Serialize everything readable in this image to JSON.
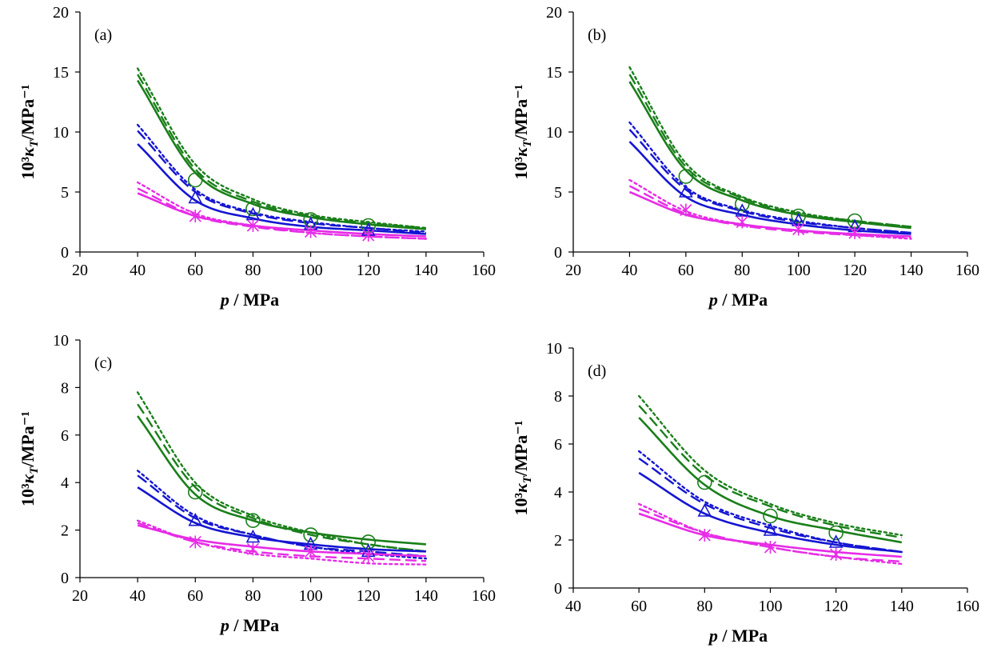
{
  "colors": {
    "green": "#1a7f1a",
    "blue": "#1515d2",
    "magenta": "#e62ce6",
    "axis": "#000000"
  },
  "chart_data": [
    {
      "type": "line",
      "panel_label": "(a)",
      "xlabel": "p / MPa",
      "ylabel": "10³κT/MPa⁻¹",
      "xlim": [
        20,
        160
      ],
      "ylim": [
        0,
        20
      ],
      "xticks": [
        20,
        40,
        60,
        80,
        100,
        120,
        140,
        160
      ],
      "yticks": [
        0,
        5,
        10,
        15,
        20
      ],
      "grid": false,
      "series": [
        {
          "color": "green",
          "style": "solid",
          "x": [
            40,
            60,
            80,
            100,
            120,
            140
          ],
          "y": [
            14.3,
            6.6,
            4.0,
            2.9,
            2.3,
            1.9
          ]
        },
        {
          "color": "green",
          "style": "dash",
          "x": [
            40,
            60,
            80,
            100,
            120,
            140
          ],
          "y": [
            14.8,
            6.9,
            4.2,
            3.0,
            2.4,
            2.0
          ]
        },
        {
          "color": "green",
          "style": "dot",
          "x": [
            40,
            60,
            80,
            100,
            120,
            140
          ],
          "y": [
            15.3,
            7.3,
            4.4,
            3.1,
            2.5,
            2.0
          ]
        },
        {
          "color": "blue",
          "style": "solid",
          "x": [
            40,
            60,
            80,
            100,
            120,
            140
          ],
          "y": [
            9.0,
            4.3,
            2.8,
            2.1,
            1.8,
            1.5
          ]
        },
        {
          "color": "blue",
          "style": "dash",
          "x": [
            40,
            60,
            80,
            100,
            120,
            140
          ],
          "y": [
            10.1,
            5.0,
            3.2,
            2.4,
            2.0,
            1.6
          ]
        },
        {
          "color": "blue",
          "style": "dot",
          "x": [
            40,
            60,
            80,
            100,
            120,
            140
          ],
          "y": [
            10.6,
            5.2,
            3.3,
            2.5,
            2.0,
            1.7
          ]
        },
        {
          "color": "magenta",
          "style": "solid",
          "x": [
            40,
            60,
            80,
            100,
            120,
            140
          ],
          "y": [
            4.9,
            3.0,
            2.2,
            1.8,
            1.5,
            1.3
          ]
        },
        {
          "color": "magenta",
          "style": "dash",
          "x": [
            40,
            60,
            80,
            100,
            120,
            140
          ],
          "y": [
            5.3,
            3.0,
            2.1,
            1.6,
            1.3,
            1.1
          ]
        },
        {
          "color": "magenta",
          "style": "dot",
          "x": [
            40,
            60,
            80,
            100,
            120,
            140
          ],
          "y": [
            5.8,
            3.2,
            2.2,
            1.6,
            1.3,
            1.1
          ]
        },
        {
          "color": "green",
          "style": "marker",
          "marker": "circle",
          "x": [
            60,
            80,
            100,
            120
          ],
          "y": [
            6.0,
            3.6,
            2.7,
            2.2
          ]
        },
        {
          "color": "blue",
          "style": "marker",
          "marker": "triangle",
          "x": [
            60,
            80,
            100,
            120
          ],
          "y": [
            4.5,
            3.1,
            2.3,
            1.8
          ]
        },
        {
          "color": "magenta",
          "style": "marker",
          "marker": "asterisk",
          "x": [
            60,
            80,
            100,
            120
          ],
          "y": [
            3.0,
            2.2,
            1.7,
            1.4
          ]
        }
      ]
    },
    {
      "type": "line",
      "panel_label": "(b)",
      "xlabel": "p / MPa",
      "ylabel": "10³κT/MPa⁻¹",
      "xlim": [
        20,
        160
      ],
      "ylim": [
        0,
        20
      ],
      "xticks": [
        20,
        40,
        60,
        80,
        100,
        120,
        140,
        160
      ],
      "yticks": [
        0,
        5,
        10,
        15,
        20
      ],
      "grid": false,
      "series": [
        {
          "color": "green",
          "style": "solid",
          "x": [
            40,
            60,
            80,
            100,
            120,
            140
          ],
          "y": [
            14.2,
            6.8,
            4.3,
            3.1,
            2.5,
            2.0
          ]
        },
        {
          "color": "green",
          "style": "dash",
          "x": [
            40,
            60,
            80,
            100,
            120,
            140
          ],
          "y": [
            14.8,
            7.1,
            4.5,
            3.2,
            2.6,
            2.1
          ]
        },
        {
          "color": "green",
          "style": "dot",
          "x": [
            40,
            60,
            80,
            100,
            120,
            140
          ],
          "y": [
            15.4,
            7.4,
            4.6,
            3.3,
            2.6,
            2.1
          ]
        },
        {
          "color": "blue",
          "style": "solid",
          "x": [
            40,
            60,
            80,
            100,
            120,
            140
          ],
          "y": [
            9.2,
            4.6,
            3.1,
            2.3,
            1.8,
            1.5
          ]
        },
        {
          "color": "blue",
          "style": "dash",
          "x": [
            40,
            60,
            80,
            100,
            120,
            140
          ],
          "y": [
            10.2,
            5.2,
            3.4,
            2.5,
            2.0,
            1.6
          ]
        },
        {
          "color": "blue",
          "style": "dot",
          "x": [
            40,
            60,
            80,
            100,
            120,
            140
          ],
          "y": [
            10.8,
            5.4,
            3.5,
            2.6,
            2.0,
            1.6
          ]
        },
        {
          "color": "magenta",
          "style": "solid",
          "x": [
            40,
            60,
            80,
            100,
            120,
            140
          ],
          "y": [
            5.0,
            3.1,
            2.3,
            1.8,
            1.5,
            1.3
          ]
        },
        {
          "color": "magenta",
          "style": "dash",
          "x": [
            40,
            60,
            80,
            100,
            120,
            140
          ],
          "y": [
            5.5,
            3.2,
            2.2,
            1.7,
            1.4,
            1.2
          ]
        },
        {
          "color": "magenta",
          "style": "dot",
          "x": [
            40,
            60,
            80,
            100,
            120,
            140
          ],
          "y": [
            6.0,
            3.4,
            2.3,
            1.8,
            1.4,
            1.1
          ]
        },
        {
          "color": "green",
          "style": "marker",
          "marker": "circle",
          "x": [
            60,
            80,
            100,
            120
          ],
          "y": [
            6.3,
            4.0,
            3.0,
            2.6
          ]
        },
        {
          "color": "blue",
          "style": "marker",
          "marker": "triangle",
          "x": [
            60,
            80,
            100,
            120
          ],
          "y": [
            5.0,
            3.4,
            2.6,
            2.1
          ]
        },
        {
          "color": "magenta",
          "style": "marker",
          "marker": "asterisk",
          "x": [
            60,
            80,
            100,
            120
          ],
          "y": [
            3.5,
            2.5,
            1.9,
            1.6
          ]
        }
      ]
    },
    {
      "type": "line",
      "panel_label": "(c)",
      "xlabel": "p / MPa",
      "ylabel": "10³κT/MPa⁻¹",
      "xlim": [
        20,
        160
      ],
      "ylim": [
        0,
        10
      ],
      "xticks": [
        20,
        40,
        60,
        80,
        100,
        120,
        140,
        160
      ],
      "yticks": [
        0,
        2,
        4,
        6,
        8,
        10
      ],
      "grid": false,
      "series": [
        {
          "color": "green",
          "style": "solid",
          "x": [
            40,
            60,
            80,
            100,
            120,
            140
          ],
          "y": [
            6.8,
            3.5,
            2.4,
            1.9,
            1.6,
            1.4
          ]
        },
        {
          "color": "green",
          "style": "dash",
          "x": [
            40,
            60,
            80,
            100,
            120,
            140
          ],
          "y": [
            7.3,
            3.8,
            2.5,
            1.8,
            1.4,
            1.1
          ]
        },
        {
          "color": "green",
          "style": "dot",
          "x": [
            40,
            60,
            80,
            100,
            120,
            140
          ],
          "y": [
            7.8,
            4.0,
            2.6,
            1.9,
            1.4,
            1.1
          ]
        },
        {
          "color": "blue",
          "style": "solid",
          "x": [
            40,
            60,
            80,
            100,
            120,
            140
          ],
          "y": [
            3.8,
            2.3,
            1.7,
            1.4,
            1.2,
            1.1
          ]
        },
        {
          "color": "blue",
          "style": "dash",
          "x": [
            40,
            60,
            80,
            100,
            120,
            140
          ],
          "y": [
            4.3,
            2.5,
            1.8,
            1.3,
            1.1,
            0.9
          ]
        },
        {
          "color": "blue",
          "style": "dot",
          "x": [
            40,
            60,
            80,
            100,
            120,
            140
          ],
          "y": [
            4.5,
            2.6,
            1.8,
            1.3,
            1.0,
            0.8
          ]
        },
        {
          "color": "magenta",
          "style": "solid",
          "x": [
            40,
            60,
            80,
            100,
            120,
            140
          ],
          "y": [
            2.2,
            1.6,
            1.3,
            1.1,
            1.0,
            0.9
          ]
        },
        {
          "color": "magenta",
          "style": "dash",
          "x": [
            40,
            60,
            80,
            100,
            120,
            140
          ],
          "y": [
            2.3,
            1.5,
            1.1,
            0.9,
            0.8,
            0.7
          ]
        },
        {
          "color": "magenta",
          "style": "dot",
          "x": [
            40,
            60,
            80,
            100,
            120,
            140
          ],
          "y": [
            2.4,
            1.5,
            1.0,
            0.8,
            0.6,
            0.55
          ]
        },
        {
          "color": "green",
          "style": "marker",
          "marker": "circle",
          "x": [
            60,
            80,
            100,
            120
          ],
          "y": [
            3.6,
            2.4,
            1.8,
            1.5
          ]
        },
        {
          "color": "blue",
          "style": "marker",
          "marker": "triangle",
          "x": [
            60,
            80,
            100,
            120
          ],
          "y": [
            2.4,
            1.7,
            1.4,
            1.1
          ]
        },
        {
          "color": "magenta",
          "style": "marker",
          "marker": "asterisk",
          "x": [
            60,
            80,
            100,
            120
          ],
          "y": [
            1.5,
            1.2,
            1.1,
            0.9
          ]
        }
      ]
    },
    {
      "type": "line",
      "panel_label": "(d)",
      "xlabel": "p / MPa",
      "ylabel": "10³κT/MPa⁻¹",
      "xlim": [
        40,
        160
      ],
      "ylim": [
        0,
        10
      ],
      "xticks": [
        40,
        60,
        80,
        100,
        120,
        140,
        160
      ],
      "yticks": [
        0,
        2,
        4,
        6,
        8,
        10
      ],
      "grid": false,
      "series": [
        {
          "color": "green",
          "style": "solid",
          "x": [
            60,
            80,
            100,
            120,
            140
          ],
          "y": [
            7.1,
            4.3,
            3.0,
            2.4,
            1.9
          ]
        },
        {
          "color": "green",
          "style": "dash",
          "x": [
            60,
            80,
            100,
            120,
            140
          ],
          "y": [
            7.6,
            4.7,
            3.4,
            2.6,
            2.1
          ]
        },
        {
          "color": "green",
          "style": "dot",
          "x": [
            60,
            80,
            100,
            120,
            140
          ],
          "y": [
            8.0,
            4.9,
            3.5,
            2.7,
            2.2
          ]
        },
        {
          "color": "blue",
          "style": "solid",
          "x": [
            60,
            80,
            100,
            120,
            140
          ],
          "y": [
            4.8,
            3.1,
            2.3,
            1.8,
            1.5
          ]
        },
        {
          "color": "blue",
          "style": "dash",
          "x": [
            60,
            80,
            100,
            120,
            140
          ],
          "y": [
            5.4,
            3.5,
            2.5,
            1.9,
            1.5
          ]
        },
        {
          "color": "blue",
          "style": "dot",
          "x": [
            60,
            80,
            100,
            120,
            140
          ],
          "y": [
            5.7,
            3.6,
            2.6,
            1.9,
            1.5
          ]
        },
        {
          "color": "magenta",
          "style": "solid",
          "x": [
            60,
            80,
            100,
            120,
            140
          ],
          "y": [
            3.1,
            2.2,
            1.8,
            1.5,
            1.3
          ]
        },
        {
          "color": "magenta",
          "style": "dash",
          "x": [
            60,
            80,
            100,
            120,
            140
          ],
          "y": [
            3.3,
            2.3,
            1.7,
            1.3,
            1.1
          ]
        },
        {
          "color": "magenta",
          "style": "dot",
          "x": [
            60,
            80,
            100,
            120,
            140
          ],
          "y": [
            3.5,
            2.3,
            1.7,
            1.3,
            1.0
          ]
        },
        {
          "color": "green",
          "style": "marker",
          "marker": "circle",
          "x": [
            80,
            100,
            120
          ],
          "y": [
            4.4,
            3.0,
            2.3
          ]
        },
        {
          "color": "blue",
          "style": "marker",
          "marker": "triangle",
          "x": [
            80,
            100,
            120
          ],
          "y": [
            3.2,
            2.4,
            1.9
          ]
        },
        {
          "color": "magenta",
          "style": "marker",
          "marker": "asterisk",
          "x": [
            80,
            100,
            120
          ],
          "y": [
            2.2,
            1.7,
            1.4
          ]
        }
      ]
    }
  ]
}
